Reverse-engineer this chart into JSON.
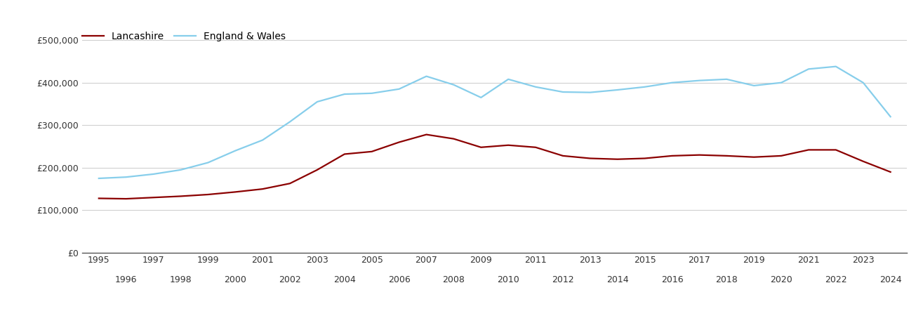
{
  "lancashire": {
    "years": [
      1995,
      1996,
      1997,
      1998,
      1999,
      2000,
      2001,
      2002,
      2003,
      2004,
      2005,
      2006,
      2007,
      2008,
      2009,
      2010,
      2011,
      2012,
      2013,
      2014,
      2015,
      2016,
      2017,
      2018,
      2019,
      2020,
      2021,
      2022,
      2023,
      2024
    ],
    "values": [
      128000,
      127000,
      130000,
      133000,
      137000,
      143000,
      150000,
      163000,
      195000,
      232000,
      238000,
      260000,
      278000,
      268000,
      248000,
      253000,
      248000,
      228000,
      222000,
      220000,
      222000,
      228000,
      230000,
      228000,
      225000,
      228000,
      242000,
      242000,
      215000,
      190000
    ]
  },
  "england_wales": {
    "years": [
      1995,
      1996,
      1997,
      1998,
      1999,
      2000,
      2001,
      2002,
      2003,
      2004,
      2005,
      2006,
      2007,
      2008,
      2009,
      2010,
      2011,
      2012,
      2013,
      2014,
      2015,
      2016,
      2017,
      2018,
      2019,
      2020,
      2021,
      2022,
      2023,
      2024
    ],
    "values": [
      175000,
      178000,
      185000,
      195000,
      212000,
      240000,
      265000,
      308000,
      355000,
      373000,
      375000,
      385000,
      415000,
      395000,
      365000,
      408000,
      390000,
      378000,
      377000,
      383000,
      390000,
      400000,
      405000,
      408000,
      393000,
      400000,
      432000,
      438000,
      400000,
      320000
    ]
  },
  "lancashire_color": "#8B0000",
  "england_wales_color": "#87CEEB",
  "background_color": "#ffffff",
  "grid_color": "#d0d0d0",
  "ylim": [
    0,
    520000
  ],
  "yticks": [
    0,
    100000,
    200000,
    300000,
    400000,
    500000
  ],
  "legend_lancashire": "Lancashire",
  "legend_ew": "England & Wales",
  "odd_years": [
    1995,
    1997,
    1999,
    2001,
    2003,
    2005,
    2007,
    2009,
    2011,
    2013,
    2015,
    2017,
    2019,
    2021,
    2023
  ],
  "even_years": [
    1996,
    1998,
    2000,
    2002,
    2004,
    2006,
    2008,
    2010,
    2012,
    2014,
    2016,
    2018,
    2020,
    2022,
    2024
  ],
  "xlim": [
    1994.4,
    2024.6
  ]
}
